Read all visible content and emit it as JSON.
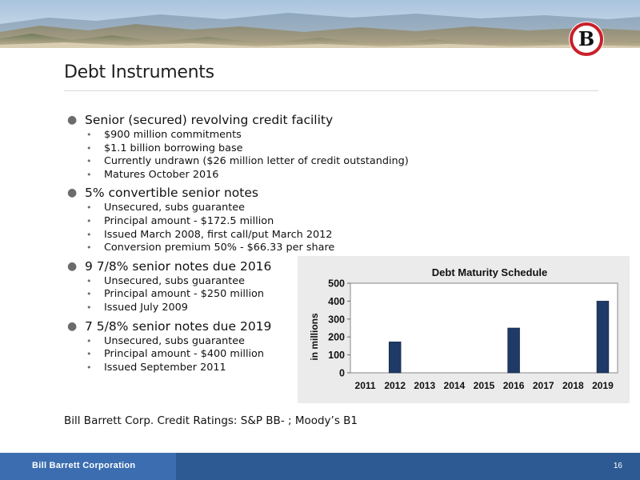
{
  "title": "Debt Instruments",
  "sections": [
    {
      "heading": "Senior (secured) revolving credit facility",
      "items": [
        "$900 million commitments",
        "$1.1 billion borrowing base",
        "Currently undrawn ($26 million letter of credit outstanding)",
        "Matures October 2016"
      ]
    },
    {
      "heading": "5% convertible senior notes",
      "items": [
        "Unsecured, subs guarantee",
        "Principal amount - $172.5 million",
        "Issued March 2008, first call/put March 2012",
        "Conversion premium 50% - $66.33 per share"
      ]
    },
    {
      "heading": "9 7/8% senior notes due 2016",
      "items": [
        "Unsecured, subs guarantee",
        "Principal amount - $250 million",
        "Issued July 2009"
      ]
    },
    {
      "heading": "7 5/8% senior notes due 2019",
      "items": [
        "Unsecured, subs guarantee",
        "Principal amount - $400 million",
        "Issued September 2011"
      ]
    }
  ],
  "ratings": "Bill Barrett Corp. Credit Ratings: S&P BB- ; Moody’s B1",
  "footer": {
    "company": "Bill Barrett Corporation",
    "page": "16"
  },
  "logo": {
    "letter": "B",
    "ring_color": "#c8202a"
  },
  "chart_data": {
    "type": "bar",
    "title": "Debt Maturity Schedule",
    "ylabel": "in millions",
    "xlabel": "",
    "categories": [
      "2011",
      "2012",
      "2013",
      "2014",
      "2015",
      "2016",
      "2017",
      "2018",
      "2019"
    ],
    "values": [
      0,
      172.5,
      0,
      0,
      0,
      250,
      0,
      0,
      400
    ],
    "ylim": [
      0,
      500
    ],
    "yticks": [
      0,
      100,
      200,
      300,
      400,
      500
    ],
    "grid": false,
    "legend": "none",
    "bar_color": "#1f3a66"
  }
}
